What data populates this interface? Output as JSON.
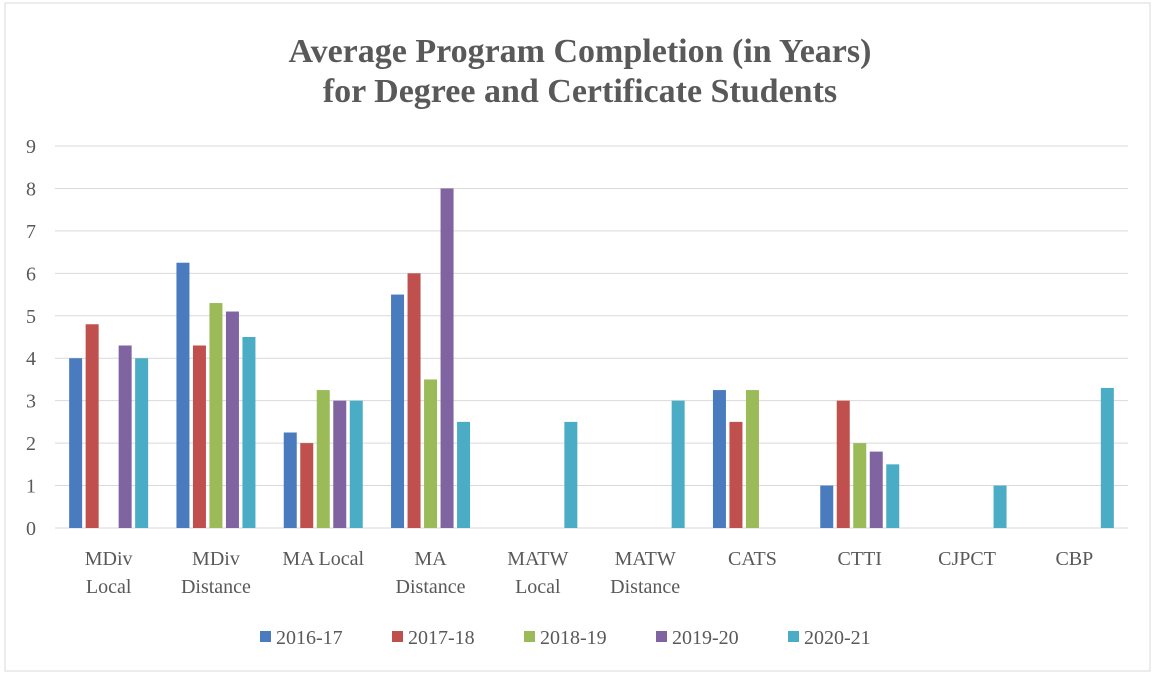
{
  "chart_data": {
    "type": "bar",
    "title": "Average Program Completion (in Years)\nfor Degree and Certificate Students",
    "categories": [
      "MDiv\nLocal",
      "MDiv\nDistance",
      "MA Local",
      "MA\nDistance",
      "MATW\nLocal",
      "MATW\nDistance",
      "CATS",
      "CTTI",
      "CJPCT",
      "CBP"
    ],
    "series": [
      {
        "name": "2016-17",
        "color": "#4a7bbf",
        "values": [
          4,
          6.25,
          2.25,
          5.5,
          null,
          null,
          3.25,
          1,
          null,
          null
        ]
      },
      {
        "name": "2017-18",
        "color": "#c0504d",
        "values": [
          4.8,
          4.3,
          2,
          6,
          null,
          null,
          2.5,
          3,
          null,
          null
        ]
      },
      {
        "name": "2018-19",
        "color": "#9bbb59",
        "values": [
          null,
          5.3,
          3.25,
          3.5,
          null,
          null,
          3.25,
          2,
          null,
          null
        ]
      },
      {
        "name": "2019-20",
        "color": "#8064a2",
        "values": [
          4.3,
          5.1,
          3,
          8,
          null,
          null,
          null,
          1.8,
          null,
          null
        ]
      },
      {
        "name": "2020-21",
        "color": "#4bacc6",
        "values": [
          4,
          4.5,
          3,
          2.5,
          2.5,
          3,
          null,
          1.5,
          1,
          3.3
        ]
      }
    ],
    "ylim": [
      0,
      9
    ],
    "yticks": [
      0,
      1,
      2,
      3,
      4,
      5,
      6,
      7,
      8,
      9
    ],
    "grid": true,
    "legend": "bottom"
  }
}
